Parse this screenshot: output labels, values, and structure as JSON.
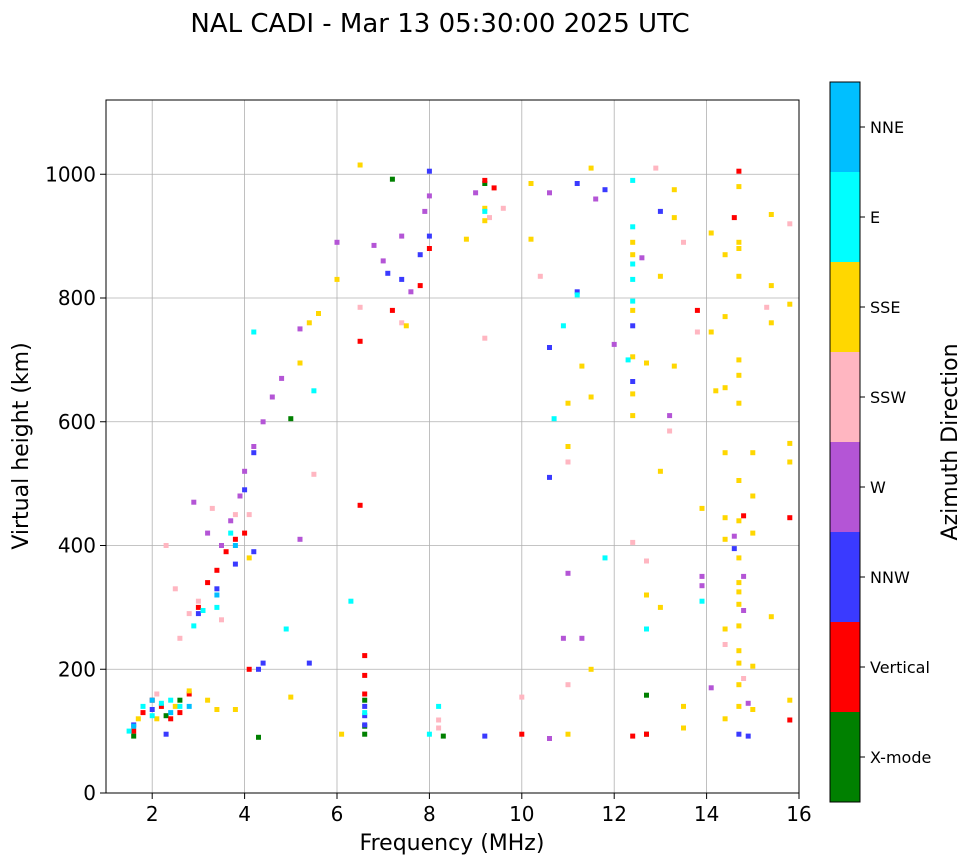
{
  "chart_data": {
    "type": "scatter",
    "title": "NAL CADI - Mar 13 05:30:00 2025 UTC",
    "xlabel": "Frequency (MHz)",
    "ylabel": "Virtual height (km)",
    "xlim": [
      1,
      16
    ],
    "ylim": [
      0,
      1120
    ],
    "xticks": [
      2,
      4,
      6,
      8,
      10,
      12,
      14,
      16
    ],
    "yticks": [
      0,
      200,
      400,
      600,
      800,
      1000
    ],
    "grid": true,
    "colorbar": {
      "title": "Azimuth Direction",
      "entries": [
        {
          "name": "X-mode",
          "color": "#008000"
        },
        {
          "name": "Vertical",
          "color": "#ff0000"
        },
        {
          "name": "NNW",
          "color": "#3a3aff"
        },
        {
          "name": "W",
          "color": "#b455d6"
        },
        {
          "name": "SSW",
          "color": "#ffb6c1"
        },
        {
          "name": "SSE",
          "color": "#ffd700"
        },
        {
          "name": "E",
          "color": "#00ffff"
        },
        {
          "name": "NNE",
          "color": "#00bfff"
        }
      ]
    },
    "series": [
      {
        "name": "X-mode",
        "points": [
          [
            1.6,
            92
          ],
          [
            2.3,
            125
          ],
          [
            2.6,
            150
          ],
          [
            4.3,
            90
          ],
          [
            5.0,
            605
          ],
          [
            6.6,
            95
          ],
          [
            6.6,
            108
          ],
          [
            6.6,
            150
          ],
          [
            7.2,
            992
          ],
          [
            8.3,
            92
          ],
          [
            12.7,
            95
          ],
          [
            12.7,
            158
          ],
          [
            9.2,
            985
          ]
        ]
      },
      {
        "name": "Vertical",
        "points": [
          [
            1.6,
            100
          ],
          [
            1.8,
            130
          ],
          [
            2.0,
            150
          ],
          [
            2.2,
            140
          ],
          [
            2.4,
            120
          ],
          [
            2.6,
            130
          ],
          [
            2.8,
            160
          ],
          [
            3.0,
            300
          ],
          [
            3.2,
            340
          ],
          [
            3.4,
            360
          ],
          [
            3.6,
            390
          ],
          [
            3.8,
            410
          ],
          [
            4.0,
            420
          ],
          [
            4.1,
            200
          ],
          [
            6.5,
            730
          ],
          [
            6.5,
            465
          ],
          [
            6.6,
            160
          ],
          [
            6.6,
            190
          ],
          [
            7.2,
            780
          ],
          [
            7.8,
            820
          ],
          [
            8.0,
            880
          ],
          [
            9.2,
            990
          ],
          [
            9.4,
            978
          ],
          [
            10.0,
            95
          ],
          [
            12.4,
            92
          ],
          [
            12.7,
            95
          ],
          [
            14.6,
            930
          ],
          [
            14.7,
            1005
          ],
          [
            14.8,
            448
          ],
          [
            15.8,
            445
          ],
          [
            15.8,
            118
          ],
          [
            13.8,
            780
          ],
          [
            6.6,
            222
          ]
        ]
      },
      {
        "name": "NNW",
        "points": [
          [
            1.6,
            110
          ],
          [
            2.0,
            135
          ],
          [
            2.3,
            95
          ],
          [
            3.0,
            290
          ],
          [
            3.4,
            330
          ],
          [
            3.8,
            370
          ],
          [
            4.2,
            390
          ],
          [
            4.3,
            200
          ],
          [
            4.4,
            210
          ],
          [
            5.4,
            210
          ],
          [
            6.6,
            110
          ],
          [
            6.6,
            125
          ],
          [
            6.6,
            140
          ],
          [
            7.1,
            840
          ],
          [
            7.4,
            830
          ],
          [
            7.8,
            870
          ],
          [
            8.0,
            900
          ],
          [
            8.0,
            1005
          ],
          [
            9.2,
            92
          ],
          [
            10.6,
            720
          ],
          [
            10.6,
            510
          ],
          [
            11.2,
            985
          ],
          [
            11.2,
            810
          ],
          [
            11.8,
            975
          ],
          [
            12.4,
            755
          ],
          [
            12.4,
            665
          ],
          [
            13.0,
            940
          ],
          [
            14.6,
            395
          ],
          [
            14.7,
            95
          ],
          [
            14.9,
            92
          ],
          [
            4.0,
            490
          ],
          [
            4.2,
            550
          ]
        ]
      },
      {
        "name": "W",
        "points": [
          [
            2.9,
            470
          ],
          [
            3.2,
            420
          ],
          [
            3.5,
            400
          ],
          [
            3.7,
            440
          ],
          [
            3.9,
            480
          ],
          [
            4.0,
            520
          ],
          [
            4.2,
            560
          ],
          [
            4.4,
            600
          ],
          [
            4.6,
            640
          ],
          [
            4.8,
            670
          ],
          [
            5.2,
            750
          ],
          [
            5.2,
            410
          ],
          [
            6.0,
            890
          ],
          [
            6.8,
            885
          ],
          [
            7.0,
            860
          ],
          [
            7.4,
            900
          ],
          [
            7.6,
            810
          ],
          [
            7.9,
            940
          ],
          [
            8.0,
            965
          ],
          [
            9.0,
            970
          ],
          [
            10.6,
            970
          ],
          [
            10.6,
            88
          ],
          [
            10.9,
            250
          ],
          [
            11.0,
            355
          ],
          [
            11.3,
            250
          ],
          [
            11.6,
            960
          ],
          [
            12.0,
            725
          ],
          [
            12.6,
            865
          ],
          [
            13.2,
            610
          ],
          [
            13.9,
            350
          ],
          [
            13.9,
            335
          ],
          [
            14.1,
            170
          ],
          [
            14.6,
            415
          ],
          [
            14.8,
            350
          ],
          [
            14.9,
            145
          ],
          [
            14.8,
            295
          ]
        ]
      },
      {
        "name": "SSW",
        "points": [
          [
            2.1,
            160
          ],
          [
            2.3,
            400
          ],
          [
            2.5,
            330
          ],
          [
            2.6,
            250
          ],
          [
            2.8,
            290
          ],
          [
            3.0,
            310
          ],
          [
            3.3,
            460
          ],
          [
            3.5,
            280
          ],
          [
            3.8,
            450
          ],
          [
            4.1,
            450
          ],
          [
            5.5,
            515
          ],
          [
            6.5,
            785
          ],
          [
            7.4,
            760
          ],
          [
            8.2,
            105
          ],
          [
            8.2,
            118
          ],
          [
            9.2,
            735
          ],
          [
            9.6,
            945
          ],
          [
            10.0,
            155
          ],
          [
            10.4,
            835
          ],
          [
            11.0,
            535
          ],
          [
            11.0,
            175
          ],
          [
            12.4,
            405
          ],
          [
            12.7,
            375
          ],
          [
            12.9,
            1010
          ],
          [
            13.2,
            585
          ],
          [
            13.5,
            890
          ],
          [
            14.4,
            240
          ],
          [
            14.8,
            185
          ],
          [
            15.3,
            785
          ],
          [
            15.8,
            920
          ],
          [
            9.3,
            930
          ],
          [
            13.8,
            745
          ]
        ]
      },
      {
        "name": "SSE",
        "points": [
          [
            1.7,
            120
          ],
          [
            2.1,
            120
          ],
          [
            2.5,
            140
          ],
          [
            2.8,
            165
          ],
          [
            3.2,
            150
          ],
          [
            3.4,
            135
          ],
          [
            3.8,
            135
          ],
          [
            5.0,
            155
          ],
          [
            5.2,
            695
          ],
          [
            5.4,
            760
          ],
          [
            5.6,
            775
          ],
          [
            6.0,
            830
          ],
          [
            6.1,
            95
          ],
          [
            6.5,
            1015
          ],
          [
            7.5,
            755
          ],
          [
            8.8,
            895
          ],
          [
            9.2,
            925
          ],
          [
            9.2,
            945
          ],
          [
            10.2,
            895
          ],
          [
            10.2,
            985
          ],
          [
            11.0,
            630
          ],
          [
            11.0,
            560
          ],
          [
            11.0,
            95
          ],
          [
            11.3,
            690
          ],
          [
            11.5,
            1010
          ],
          [
            11.5,
            640
          ],
          [
            11.5,
            200
          ],
          [
            12.4,
            890
          ],
          [
            12.4,
            870
          ],
          [
            12.4,
            780
          ],
          [
            12.4,
            705
          ],
          [
            12.4,
            645
          ],
          [
            12.4,
            610
          ],
          [
            12.7,
            695
          ],
          [
            12.7,
            320
          ],
          [
            13.0,
            835
          ],
          [
            13.0,
            520
          ],
          [
            13.0,
            300
          ],
          [
            13.3,
            975
          ],
          [
            13.3,
            930
          ],
          [
            13.3,
            690
          ],
          [
            13.5,
            140
          ],
          [
            13.5,
            105
          ],
          [
            13.9,
            460
          ],
          [
            14.1,
            905
          ],
          [
            14.1,
            745
          ],
          [
            14.2,
            650
          ],
          [
            14.4,
            870
          ],
          [
            14.4,
            770
          ],
          [
            14.4,
            655
          ],
          [
            14.4,
            550
          ],
          [
            14.4,
            445
          ],
          [
            14.4,
            410
          ],
          [
            14.4,
            265
          ],
          [
            14.4,
            120
          ],
          [
            14.7,
            980
          ],
          [
            14.7,
            890
          ],
          [
            14.7,
            880
          ],
          [
            14.7,
            835
          ],
          [
            14.7,
            700
          ],
          [
            14.7,
            675
          ],
          [
            14.7,
            630
          ],
          [
            14.7,
            505
          ],
          [
            14.7,
            440
          ],
          [
            14.7,
            380
          ],
          [
            14.7,
            340
          ],
          [
            14.7,
            325
          ],
          [
            14.7,
            305
          ],
          [
            14.7,
            270
          ],
          [
            14.7,
            230
          ],
          [
            14.7,
            210
          ],
          [
            14.7,
            175
          ],
          [
            14.7,
            140
          ],
          [
            15.0,
            550
          ],
          [
            15.0,
            480
          ],
          [
            15.0,
            420
          ],
          [
            15.0,
            205
          ],
          [
            15.0,
            135
          ],
          [
            15.4,
            935
          ],
          [
            15.4,
            820
          ],
          [
            15.4,
            760
          ],
          [
            15.4,
            285
          ],
          [
            15.8,
            790
          ],
          [
            15.8,
            565
          ],
          [
            15.8,
            535
          ],
          [
            15.8,
            150
          ],
          [
            4.1,
            380
          ]
        ]
      },
      {
        "name": "E",
        "points": [
          [
            1.5,
            100
          ],
          [
            1.8,
            140
          ],
          [
            2.0,
            125
          ],
          [
            2.2,
            145
          ],
          [
            2.4,
            150
          ],
          [
            2.6,
            140
          ],
          [
            2.9,
            270
          ],
          [
            3.1,
            295
          ],
          [
            3.4,
            300
          ],
          [
            3.7,
            420
          ],
          [
            4.2,
            745
          ],
          [
            4.9,
            265
          ],
          [
            5.5,
            650
          ],
          [
            6.3,
            310
          ],
          [
            6.6,
            130
          ],
          [
            8.0,
            95
          ],
          [
            8.2,
            140
          ],
          [
            9.2,
            940
          ],
          [
            10.7,
            605
          ],
          [
            10.9,
            755
          ],
          [
            11.2,
            805
          ],
          [
            11.8,
            380
          ],
          [
            12.3,
            700
          ],
          [
            12.4,
            990
          ],
          [
            12.4,
            915
          ],
          [
            12.4,
            855
          ],
          [
            12.4,
            830
          ],
          [
            12.4,
            795
          ],
          [
            12.7,
            265
          ],
          [
            13.9,
            310
          ]
        ]
      },
      {
        "name": "NNE",
        "points": [
          [
            1.6,
            108
          ],
          [
            2.0,
            150
          ],
          [
            2.4,
            130
          ],
          [
            2.8,
            140
          ],
          [
            3.4,
            320
          ],
          [
            3.8,
            400
          ]
        ]
      }
    ]
  }
}
